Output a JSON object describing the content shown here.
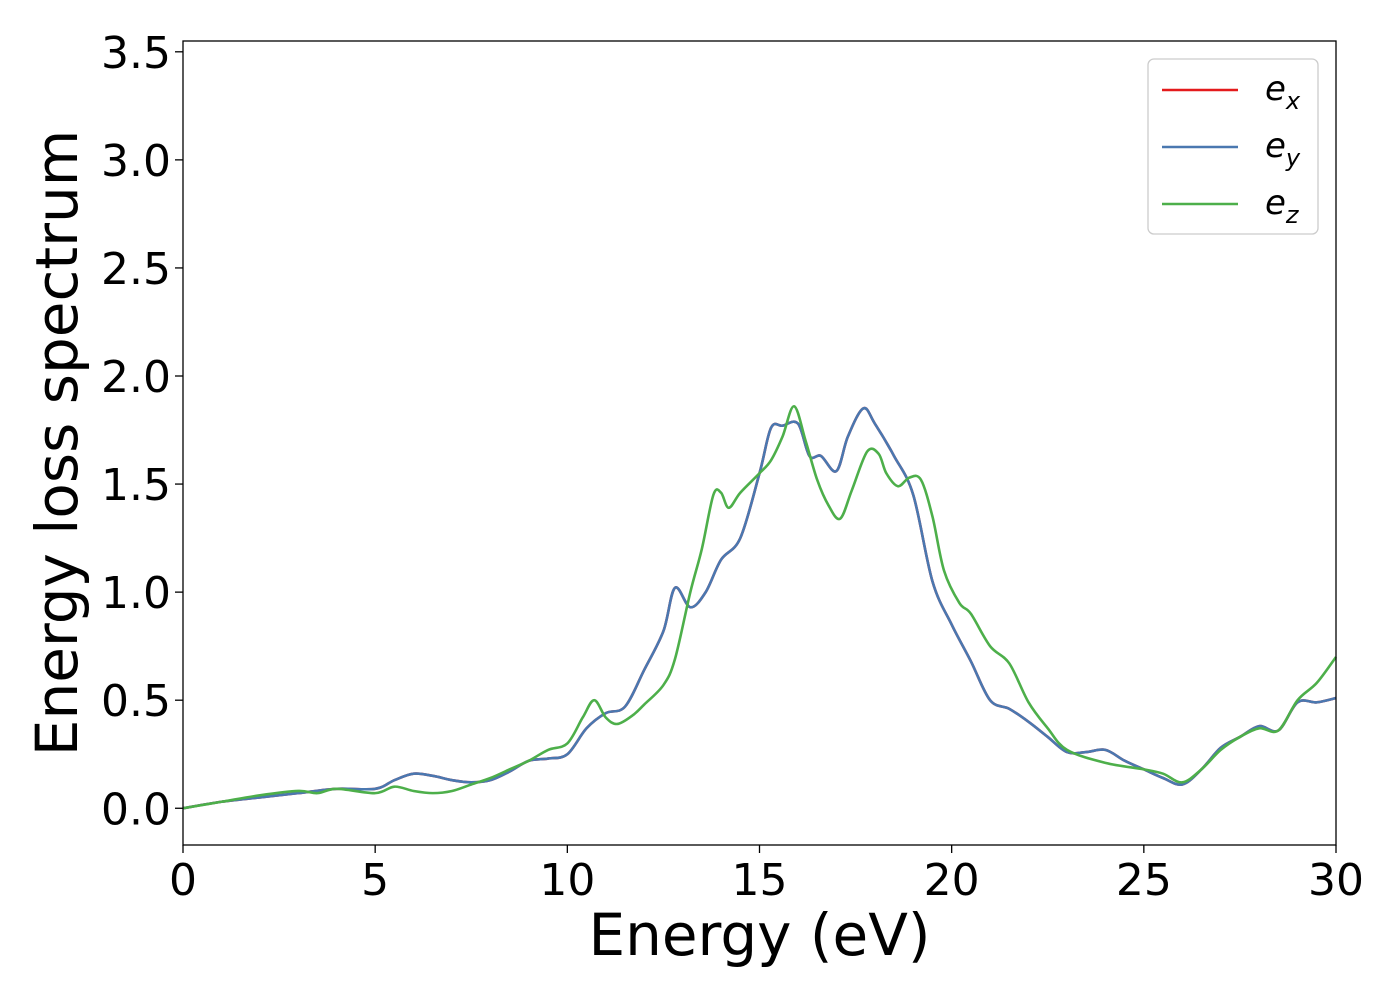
{
  "chart_data": {
    "type": "line",
    "title": "",
    "xlabel": "Energy (eV)",
    "ylabel": "Energy loss spectrum",
    "xlim": [
      0,
      30
    ],
    "ylim": [
      -0.17,
      3.55
    ],
    "xticks": [
      0,
      5,
      10,
      15,
      20,
      25,
      30
    ],
    "xtick_labels": [
      "0",
      "5",
      "10",
      "15",
      "20",
      "25",
      "30"
    ],
    "yticks": [
      0.0,
      0.5,
      1.0,
      1.5,
      2.0,
      2.5,
      3.0,
      3.5
    ],
    "ytick_labels": [
      "0.0",
      "0.5",
      "1.0",
      "1.5",
      "2.0",
      "2.5",
      "3.0",
      "3.5"
    ],
    "grid": false,
    "legend_position": "top-right",
    "series": [
      {
        "name": "e_x",
        "label_base": "e",
        "label_sub": "x",
        "color": "#e41a1c",
        "x": [
          0,
          1,
          2,
          3,
          4,
          5,
          5.5,
          6,
          6.5,
          7,
          7.5,
          8,
          8.5,
          9,
          9.5,
          10,
          10.5,
          11,
          11.5,
          12,
          12.5,
          12.8,
          13.2,
          13.6,
          14,
          14.5,
          15,
          15.3,
          15.6,
          16,
          16.3,
          16.6,
          17,
          17.3,
          17.7,
          18,
          18.5,
          19,
          19.5,
          20,
          20.5,
          21,
          21.5,
          22,
          22.5,
          23,
          23.5,
          24,
          24.5,
          25,
          25.5,
          26,
          26.5,
          27,
          27.5,
          28,
          28.5,
          29,
          29.5,
          30
        ],
        "y": [
          0.0,
          0.03,
          0.05,
          0.07,
          0.09,
          0.09,
          0.13,
          0.16,
          0.15,
          0.13,
          0.12,
          0.13,
          0.17,
          0.22,
          0.23,
          0.25,
          0.37,
          0.44,
          0.47,
          0.64,
          0.82,
          1.02,
          0.93,
          1.0,
          1.15,
          1.25,
          1.55,
          1.76,
          1.77,
          1.78,
          1.63,
          1.63,
          1.56,
          1.72,
          1.85,
          1.78,
          1.63,
          1.45,
          1.05,
          0.85,
          0.68,
          0.5,
          0.46,
          0.4,
          0.33,
          0.26,
          0.26,
          0.27,
          0.22,
          0.18,
          0.14,
          0.11,
          0.18,
          0.28,
          0.33,
          0.38,
          0.36,
          0.49,
          0.49,
          0.51
        ]
      },
      {
        "name": "e_y",
        "label_base": "e",
        "label_sub": "y",
        "color": "#4a78b0",
        "x": [
          0,
          1,
          2,
          3,
          4,
          5,
          5.5,
          6,
          6.5,
          7,
          7.5,
          8,
          8.5,
          9,
          9.5,
          10,
          10.5,
          11,
          11.5,
          12,
          12.5,
          12.8,
          13.2,
          13.6,
          14,
          14.5,
          15,
          15.3,
          15.6,
          16,
          16.3,
          16.6,
          17,
          17.3,
          17.7,
          18,
          18.5,
          19,
          19.5,
          20,
          20.5,
          21,
          21.5,
          22,
          22.5,
          23,
          23.5,
          24,
          24.5,
          25,
          25.5,
          26,
          26.5,
          27,
          27.5,
          28,
          28.5,
          29,
          29.5,
          30
        ],
        "y": [
          0.0,
          0.03,
          0.05,
          0.07,
          0.09,
          0.09,
          0.13,
          0.16,
          0.15,
          0.13,
          0.12,
          0.13,
          0.17,
          0.22,
          0.23,
          0.25,
          0.37,
          0.44,
          0.47,
          0.64,
          0.82,
          1.02,
          0.93,
          1.0,
          1.15,
          1.25,
          1.55,
          1.76,
          1.77,
          1.78,
          1.63,
          1.63,
          1.56,
          1.72,
          1.85,
          1.78,
          1.63,
          1.45,
          1.05,
          0.85,
          0.68,
          0.5,
          0.46,
          0.4,
          0.33,
          0.26,
          0.26,
          0.27,
          0.22,
          0.18,
          0.14,
          0.11,
          0.18,
          0.28,
          0.33,
          0.38,
          0.36,
          0.49,
          0.49,
          0.51
        ]
      },
      {
        "name": "e_z",
        "label_base": "e",
        "label_sub": "z",
        "color": "#4daf4a",
        "x": [
          0,
          1,
          2,
          3,
          3.5,
          4,
          5,
          5.5,
          6,
          6.5,
          7,
          7.5,
          8,
          8.5,
          9,
          9.5,
          10,
          10.4,
          10.7,
          11,
          11.3,
          11.7,
          12,
          12.5,
          12.8,
          13.2,
          13.5,
          13.8,
          14,
          14.2,
          14.5,
          15,
          15.3,
          15.6,
          15.9,
          16.2,
          16.5,
          16.8,
          17.1,
          17.4,
          17.8,
          18.1,
          18.3,
          18.6,
          18.9,
          19.2,
          19.5,
          19.8,
          20.2,
          20.5,
          21,
          21.5,
          22,
          22.5,
          23,
          24,
          25,
          25.5,
          26,
          26.5,
          27,
          27.5,
          28,
          28.5,
          29,
          29.5,
          30
        ],
        "y": [
          0.0,
          0.03,
          0.06,
          0.08,
          0.07,
          0.09,
          0.07,
          0.1,
          0.08,
          0.07,
          0.08,
          0.11,
          0.14,
          0.18,
          0.22,
          0.27,
          0.3,
          0.42,
          0.5,
          0.42,
          0.39,
          0.43,
          0.48,
          0.57,
          0.69,
          1.0,
          1.2,
          1.45,
          1.46,
          1.39,
          1.46,
          1.55,
          1.61,
          1.72,
          1.86,
          1.7,
          1.52,
          1.4,
          1.34,
          1.47,
          1.65,
          1.64,
          1.55,
          1.49,
          1.53,
          1.52,
          1.35,
          1.1,
          0.95,
          0.9,
          0.75,
          0.67,
          0.49,
          0.37,
          0.27,
          0.21,
          0.18,
          0.16,
          0.12,
          0.18,
          0.27,
          0.33,
          0.37,
          0.36,
          0.5,
          0.58,
          0.7
        ]
      }
    ]
  }
}
